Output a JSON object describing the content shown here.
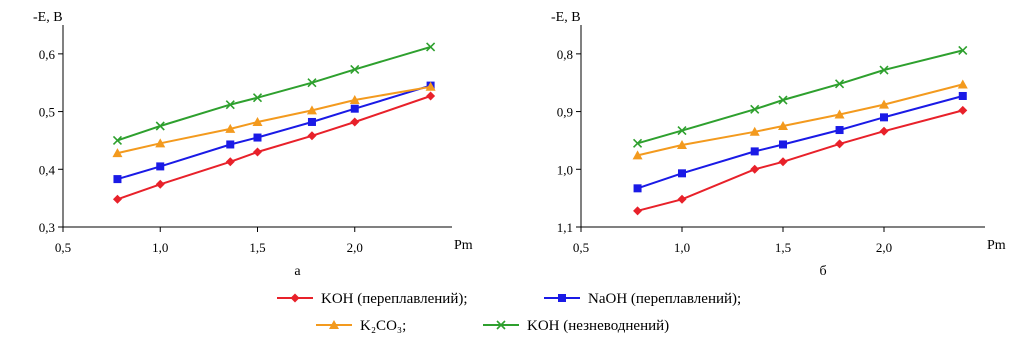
{
  "chart_data": [
    {
      "type": "line",
      "panel_label": "а",
      "ylabel": "-E, B",
      "xlabel": "Pm",
      "xlim": [
        0.5,
        2.5
      ],
      "ylim": [
        0.3,
        0.65
      ],
      "y_inverted": false,
      "xticks": [
        0.5,
        1.0,
        1.5,
        2.0
      ],
      "xtick_labels": [
        "0,5",
        "1,0",
        "1,5",
        "2,0"
      ],
      "yticks": [
        0.3,
        0.4,
        0.5,
        0.6
      ],
      "ytick_labels": [
        "0,3",
        "0,4",
        "0,5",
        "0,6"
      ],
      "grid": false,
      "series": [
        {
          "name": "KOH (переплавлений);",
          "color": "#e8212a",
          "marker": "diamond",
          "points": [
            [
              0.78,
              0.348
            ],
            [
              1.0,
              0.374
            ],
            [
              1.36,
              0.413
            ],
            [
              1.5,
              0.43
            ],
            [
              1.78,
              0.458
            ],
            [
              2.0,
              0.482
            ],
            [
              2.39,
              0.527
            ]
          ]
        },
        {
          "name": "NaOH (переплавлений);",
          "color": "#1a1ae6",
          "marker": "square",
          "points": [
            [
              0.78,
              0.383
            ],
            [
              1.0,
              0.405
            ],
            [
              1.36,
              0.443
            ],
            [
              1.5,
              0.455
            ],
            [
              1.78,
              0.482
            ],
            [
              2.0,
              0.505
            ],
            [
              2.39,
              0.545
            ]
          ]
        },
        {
          "name": "K₂CO₃;",
          "color": "#f39a1e",
          "marker": "triangle",
          "points": [
            [
              0.78,
              0.428
            ],
            [
              1.0,
              0.445
            ],
            [
              1.36,
              0.47
            ],
            [
              1.5,
              0.482
            ],
            [
              1.78,
              0.502
            ],
            [
              2.0,
              0.52
            ],
            [
              2.39,
              0.543
            ]
          ]
        },
        {
          "name": "KOH (незневоднений)",
          "color": "#2ea02e",
          "marker": "x",
          "points": [
            [
              0.78,
              0.45
            ],
            [
              1.0,
              0.475
            ],
            [
              1.36,
              0.512
            ],
            [
              1.5,
              0.524
            ],
            [
              1.78,
              0.55
            ],
            [
              2.0,
              0.573
            ],
            [
              2.39,
              0.612
            ]
          ]
        }
      ]
    },
    {
      "type": "line",
      "panel_label": "б",
      "ylabel": "-E, B",
      "xlabel": "Pm",
      "xlim": [
        0.5,
        2.5
      ],
      "ylim": [
        0.75,
        1.1
      ],
      "y_inverted": true,
      "xticks": [
        0.5,
        1.0,
        1.5,
        2.0
      ],
      "xtick_labels": [
        "0,5",
        "1,0",
        "1,5",
        "2,0"
      ],
      "yticks": [
        0.8,
        0.9,
        1.0,
        1.1
      ],
      "ytick_labels": [
        "0,8",
        "0,9",
        "1,0",
        "1,1"
      ],
      "grid": false,
      "series": [
        {
          "name": "KOH (переплавлений);",
          "color": "#e8212a",
          "marker": "diamond",
          "points": [
            [
              0.78,
              1.072
            ],
            [
              1.0,
              1.052
            ],
            [
              1.36,
              1.0
            ],
            [
              1.5,
              0.987
            ],
            [
              1.78,
              0.956
            ],
            [
              2.0,
              0.934
            ],
            [
              2.39,
              0.898
            ]
          ]
        },
        {
          "name": "NaOH (переплавлений);",
          "color": "#1a1ae6",
          "marker": "square",
          "points": [
            [
              0.78,
              1.033
            ],
            [
              1.0,
              1.007
            ],
            [
              1.36,
              0.969
            ],
            [
              1.5,
              0.957
            ],
            [
              1.78,
              0.932
            ],
            [
              2.0,
              0.91
            ],
            [
              2.39,
              0.873
            ]
          ]
        },
        {
          "name": "K₂CO₃;",
          "color": "#f39a1e",
          "marker": "triangle",
          "points": [
            [
              0.78,
              0.976
            ],
            [
              1.0,
              0.958
            ],
            [
              1.36,
              0.935
            ],
            [
              1.5,
              0.925
            ],
            [
              1.78,
              0.905
            ],
            [
              2.0,
              0.888
            ],
            [
              2.39,
              0.853
            ]
          ]
        },
        {
          "name": "KOH (незневоднений)",
          "color": "#2ea02e",
          "marker": "x",
          "points": [
            [
              0.78,
              0.955
            ],
            [
              1.0,
              0.933
            ],
            [
              1.36,
              0.896
            ],
            [
              1.5,
              0.88
            ],
            [
              1.78,
              0.852
            ],
            [
              2.0,
              0.828
            ],
            [
              2.39,
              0.794
            ]
          ]
        }
      ]
    }
  ],
  "legend": {
    "placement": "bottom-center",
    "entries": [
      {
        "label": "KOH (переплавлений);",
        "color": "#e8212a",
        "marker": "diamond"
      },
      {
        "label": "NaOH (переплавлений);",
        "color": "#1a1ae6",
        "marker": "square"
      },
      {
        "label": "K₂CO₃;",
        "color": "#f39a1e",
        "marker": "triangle"
      },
      {
        "label": "KOH (незневоднений)",
        "color": "#2ea02e",
        "marker": "x"
      }
    ]
  }
}
